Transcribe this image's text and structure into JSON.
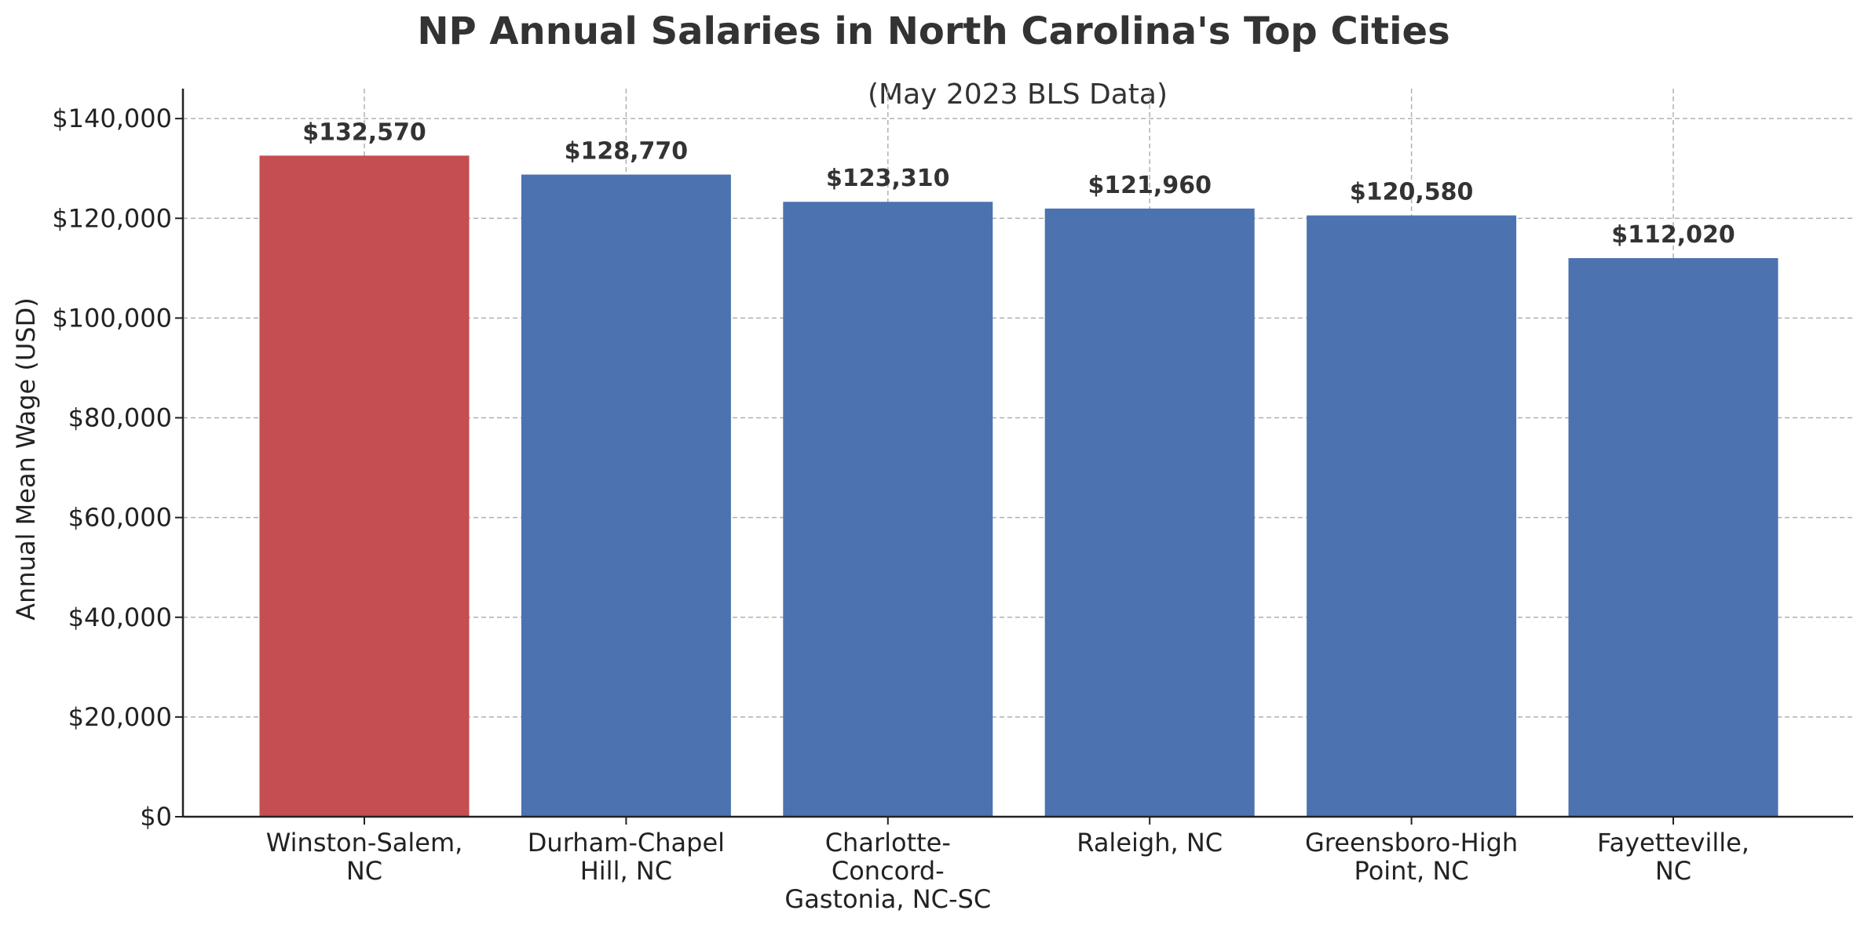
{
  "chart_data": {
    "type": "bar",
    "title": "NP Annual Salaries in North Carolina's Top Cities",
    "subtitle": "(May 2023 BLS Data)",
    "xlabel": "",
    "ylabel": "Annual Mean Wage (USD)",
    "categories": [
      [
        "Winston-Salem,",
        "NC"
      ],
      [
        "Durham-Chapel",
        "Hill, NC"
      ],
      [
        "Charlotte-",
        "Concord-",
        "Gastonia, NC-SC"
      ],
      [
        "Raleigh, NC"
      ],
      [
        "Greensboro-High",
        "Point, NC"
      ],
      [
        "Fayetteville,",
        "NC"
      ]
    ],
    "values": [
      132570,
      128770,
      123310,
      121960,
      120580,
      112020
    ],
    "value_labels": [
      "$132,570",
      "$128,770",
      "$123,310",
      "$121,960",
      "$120,580",
      "$112,020"
    ],
    "colors": [
      "#c44e52",
      "#4c72b0",
      "#4c72b0",
      "#4c72b0",
      "#4c72b0",
      "#4c72b0"
    ],
    "ylim": [
      0,
      146000
    ],
    "yticks": [
      0,
      20000,
      40000,
      60000,
      80000,
      100000,
      120000,
      140000
    ],
    "ytick_labels": [
      "$0",
      "$20,000",
      "$40,000",
      "$60,000",
      "$80,000",
      "$100,000",
      "$120,000",
      "$140,000"
    ],
    "grid": true
  }
}
